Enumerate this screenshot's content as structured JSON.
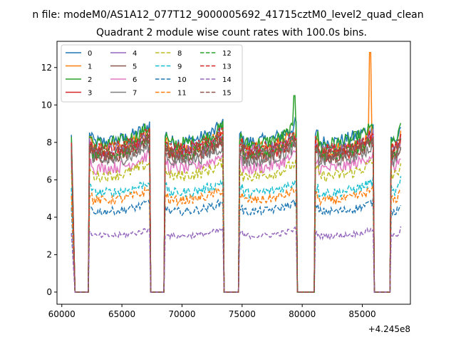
{
  "chart_data": {
    "type": "line",
    "suptitle": "n file: modeM0/AS1A12_077T12_9000005692_41715cztM0_level2_quad_clean",
    "title": "Quadrant 2 module wise count rates with 100.0s bins.",
    "xlabel": "",
    "ylabel": "",
    "x_offset_label": "+4.245e8",
    "xlim": [
      59600,
      89000
    ],
    "ylim": [
      -0.65,
      13.4
    ],
    "xticks": [
      60000,
      65000,
      70000,
      75000,
      80000,
      85000
    ],
    "xtick_labels": [
      "60000",
      "65000",
      "70000",
      "75000",
      "80000",
      "85000"
    ],
    "yticks": [
      0,
      2,
      4,
      6,
      8,
      10,
      12
    ],
    "ytick_labels": [
      "0",
      "2",
      "4",
      "6",
      "8",
      "10",
      "12"
    ],
    "grid": false,
    "legend_position": "top-left",
    "legend_columns": 4,
    "bin_seconds": 100,
    "active_intervals": [
      [
        60800,
        61000,
        "decay"
      ],
      [
        62300,
        67300
      ],
      [
        68600,
        73400
      ],
      [
        74800,
        79500
      ],
      [
        81100,
        85900
      ],
      [
        87400,
        88200
      ]
    ],
    "gap_value": 0,
    "series": [
      {
        "name": "0",
        "color": "#1f77b4",
        "dash": "solid",
        "level": 8.0
      },
      {
        "name": "1",
        "color": "#ff7f0e",
        "dash": "solid",
        "level": 7.6
      },
      {
        "name": "2",
        "color": "#2ca02c",
        "dash": "solid",
        "level": 7.9
      },
      {
        "name": "3",
        "color": "#d62728",
        "dash": "solid",
        "level": 7.3
      },
      {
        "name": "4",
        "color": "#9467bd",
        "dash": "solid",
        "level": 7.5
      },
      {
        "name": "5",
        "color": "#8c564b",
        "dash": "solid",
        "level": 7.2
      },
      {
        "name": "6",
        "color": "#e377c2",
        "dash": "solid",
        "level": 6.6
      },
      {
        "name": "7",
        "color": "#7f7f7f",
        "dash": "solid",
        "level": 7.0
      },
      {
        "name": "8",
        "color": "#bcbd22",
        "dash": "dashed",
        "level": 6.2
      },
      {
        "name": "9",
        "color": "#17becf",
        "dash": "dashed",
        "level": 5.3
      },
      {
        "name": "10",
        "color": "#1f77b4",
        "dash": "dashed",
        "level": 4.3
      },
      {
        "name": "11",
        "color": "#ff7f0e",
        "dash": "dashed",
        "level": 4.9
      },
      {
        "name": "12",
        "color": "#2ca02c",
        "dash": "dashed",
        "level": 7.4
      },
      {
        "name": "13",
        "color": "#d62728",
        "dash": "dashed",
        "level": 7.6
      },
      {
        "name": "14",
        "color": "#9467bd",
        "dash": "dashed",
        "level": 3.0
      },
      {
        "name": "15",
        "color": "#8c564b",
        "dash": "dashed",
        "level": 7.4
      }
    ]
  }
}
